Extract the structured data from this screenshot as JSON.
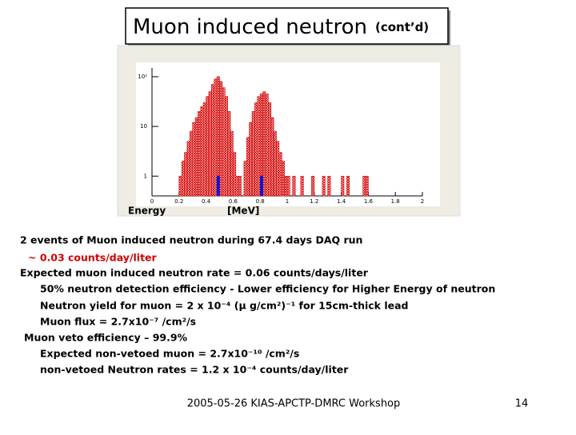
{
  "title": "Muon induced neutron",
  "title_suffix": "(cont’d)",
  "chart_data": {
    "type": "histogram",
    "x_label": "Energy",
    "x_unit": "[MeV]",
    "bins": [
      0,
      0.02,
      0.04,
      0.06,
      0.08,
      0.1,
      0.12,
      0.14,
      0.16,
      0.18,
      0.2,
      0.22,
      0.24,
      0.26,
      0.28,
      0.3,
      0.32,
      0.34,
      0.36,
      0.38,
      0.4,
      0.42,
      0.44,
      0.46,
      0.48,
      0.5,
      0.52,
      0.54,
      0.56,
      0.58,
      0.6,
      0.62,
      0.64,
      0.66,
      0.68,
      0.7,
      0.72,
      0.74,
      0.76,
      0.78,
      0.8,
      0.82,
      0.84,
      0.86,
      0.88,
      0.9,
      0.92,
      0.94,
      0.96,
      0.98,
      1,
      1.02,
      1.04,
      1.06,
      1.08,
      1.1,
      1.12,
      1.14,
      1.16,
      1.18,
      1.2,
      1.22,
      1.24,
      1.26,
      1.28,
      1.3,
      1.32,
      1.34,
      1.36,
      1.38,
      1.4,
      1.42,
      1.44,
      1.46,
      1.48,
      1.5,
      1.52,
      1.54,
      1.56,
      1.58,
      1.6,
      1.62,
      1.64,
      1.66,
      1.68,
      1.7,
      1.72,
      1.74,
      1.76,
      1.78,
      1.8,
      1.82,
      1.84,
      1.86,
      1.88,
      1.9,
      1.92,
      1.94,
      1.96,
      1.98,
      2
    ],
    "series": [
      {
        "color": "#d40000",
        "fill": "hatch",
        "values": [
          0,
          0,
          0,
          0,
          0,
          0,
          0,
          0,
          0,
          0,
          1,
          2,
          3,
          5,
          8,
          12,
          15,
          20,
          25,
          30,
          40,
          50,
          70,
          90,
          100,
          80,
          60,
          40,
          20,
          8,
          3,
          1,
          1,
          0,
          2,
          6,
          12,
          20,
          30,
          40,
          45,
          50,
          45,
          30,
          15,
          8,
          5,
          3,
          2,
          1,
          1,
          0,
          1,
          0,
          0,
          1,
          0,
          0,
          0,
          1,
          0,
          0,
          0,
          1,
          0,
          1,
          0,
          0,
          0,
          0,
          1,
          0,
          1,
          0,
          0,
          0,
          0,
          0,
          1,
          1,
          0,
          0,
          0,
          0,
          0,
          0,
          0,
          0,
          0,
          0,
          0,
          0,
          0,
          0,
          0,
          0,
          0,
          0,
          0,
          0
        ]
      },
      {
        "color": "#1010d0",
        "fill": "solid",
        "values": [
          0,
          0,
          0,
          0,
          0,
          0,
          0,
          0,
          0,
          0,
          0,
          0,
          0,
          0,
          0,
          0,
          0,
          0,
          0,
          0,
          0,
          0,
          0,
          0,
          1,
          0,
          0,
          0,
          0,
          0,
          0,
          0,
          0,
          0,
          0,
          0,
          0,
          0,
          0,
          0,
          1,
          0,
          0,
          0,
          0,
          0,
          0,
          0,
          0,
          0,
          0,
          0,
          0,
          0,
          0,
          0,
          0,
          0,
          0,
          0,
          0,
          0,
          0,
          0,
          0,
          0,
          0,
          0,
          0,
          0,
          0,
          0,
          0,
          0,
          0,
          0,
          0,
          0,
          0,
          0,
          0,
          0,
          0,
          0,
          0,
          0,
          0,
          0,
          0,
          0,
          0,
          0,
          0,
          0,
          0,
          0,
          0,
          0,
          0,
          0
        ]
      }
    ],
    "xlim": [
      0,
      2
    ],
    "xticks": [
      0,
      0.2,
      0.4,
      0.6,
      0.8,
      1,
      1.2,
      1.4,
      1.6,
      1.8,
      2
    ],
    "ylim": [
      0.4,
      150
    ],
    "log_y": true,
    "yticks": [
      1,
      10,
      {
        "value": 100,
        "label": "10²"
      }
    ]
  },
  "body": [
    "2 events of Muon induced neutron during 67.4 days DAQ run",
    "~ 0.03 counts/day/liter",
    "Expected muon induced neutron rate = 0.06 counts/days/liter",
    "50% neutron detection efficiency  - Lower efficiency for Higher Energy of neutron",
    "Neutron yield for muon = 2 x 10⁻⁴ (μ g/cm²)⁻¹ for 15cm-thick lead",
    "Muon flux = 2.7x10⁻⁷ /cm²/s",
    "Muon veto efficiency – 99.9%",
    "Expected non-vetoed muon = 2.7x10⁻¹⁰ /cm²/s",
    "non-vetoed Neutron rates = 1.2 x 10⁻⁴ counts/day/liter"
  ],
  "footer": "2005-05-26 KIAS-APCTP-DMRC Workshop",
  "page_number": "14"
}
